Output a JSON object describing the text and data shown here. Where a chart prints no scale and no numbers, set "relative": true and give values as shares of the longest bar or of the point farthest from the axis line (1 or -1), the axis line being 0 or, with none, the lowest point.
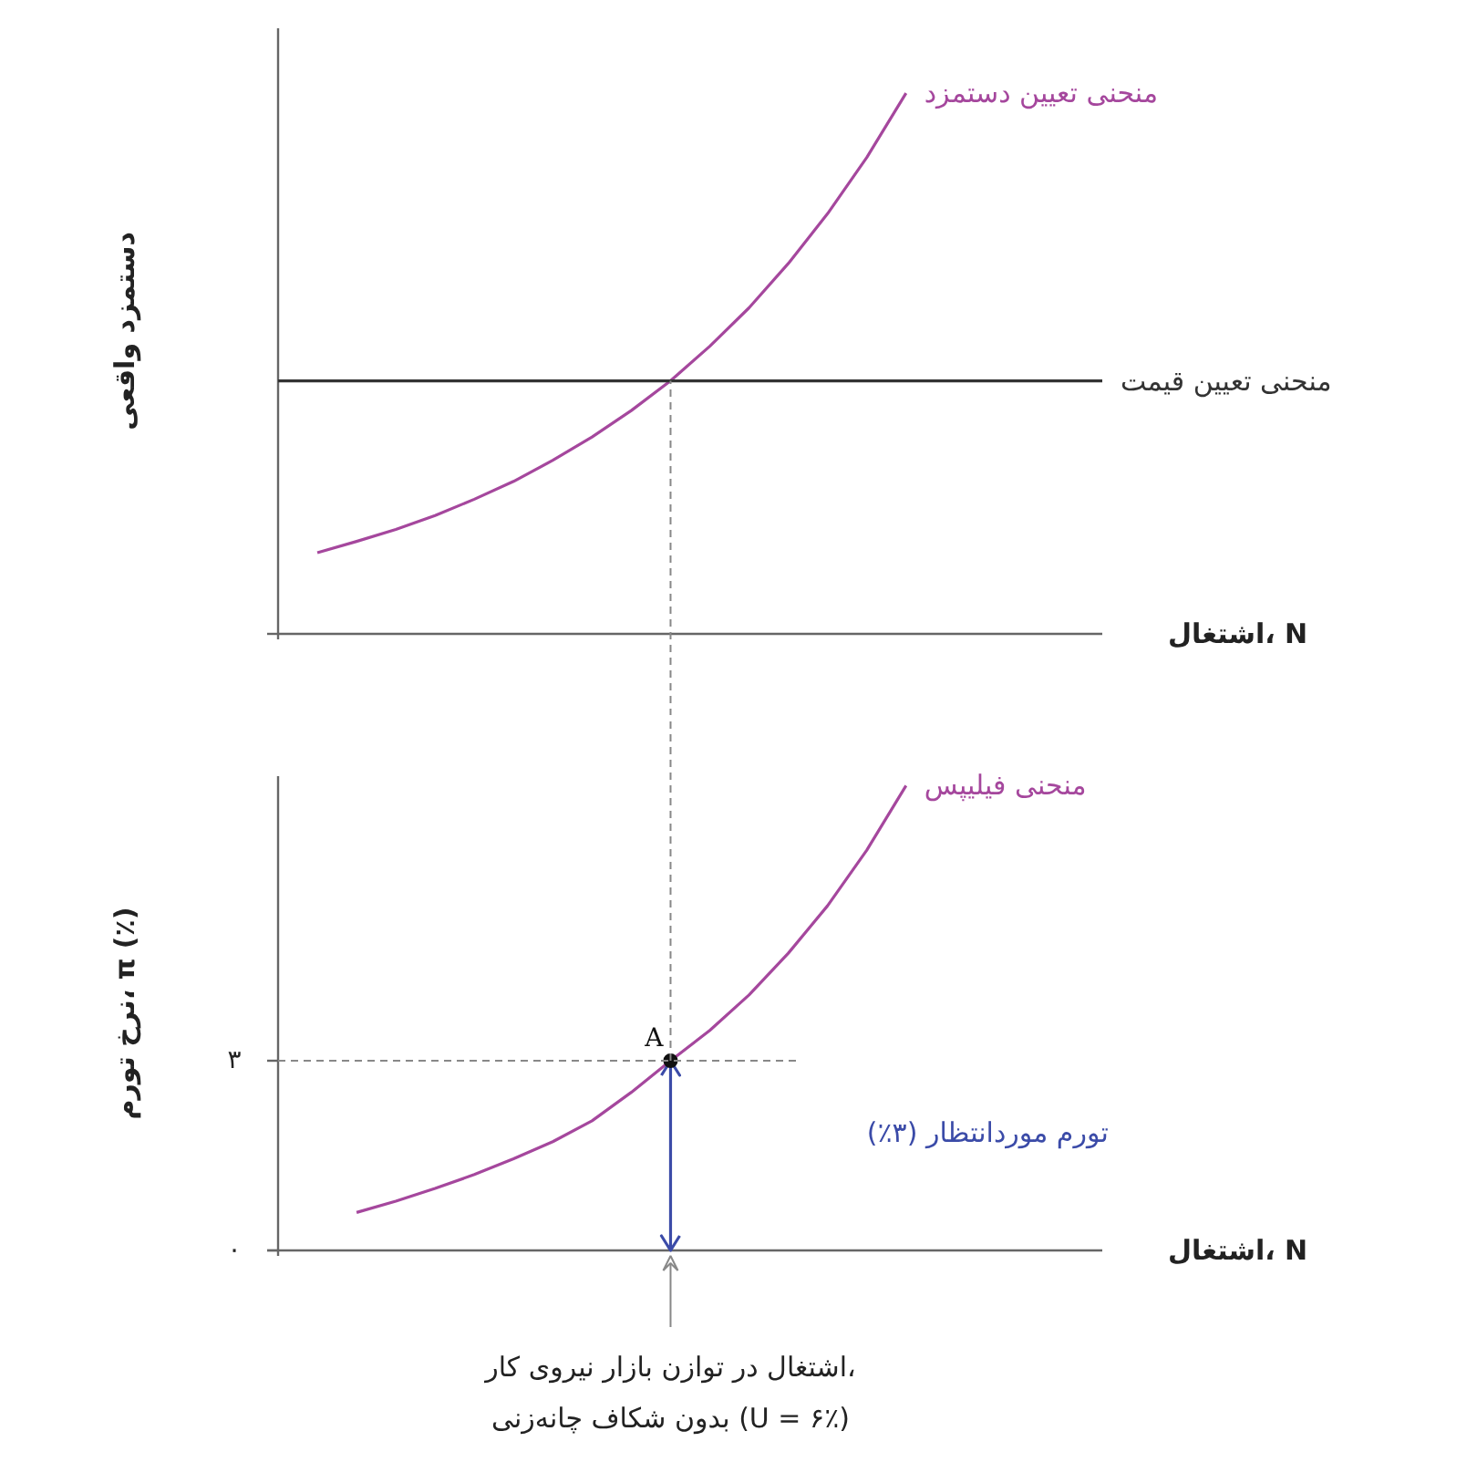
{
  "chart_data": [
    {
      "type": "line",
      "relative": true,
      "ylabel": "دستمزد واقعی",
      "xlabel": "اشتغال، N",
      "tick_labels": false,
      "grid": false,
      "legend": false,
      "categories": [
        null,
        null,
        null,
        null,
        null,
        null,
        null,
        null,
        null,
        null,
        null,
        null,
        null,
        null,
        null,
        null,
        null,
        null,
        null,
        null,
        null,
        null
      ],
      "series": [
        {
          "name": "منحنی تعیین دستمزد",
          "color": "#a5479d",
          "values": [
            null,
            0.15,
            0.171,
            0.193,
            0.219,
            0.249,
            0.282,
            0.321,
            0.364,
            0.413,
            0.468,
            0.532,
            0.603,
            0.685,
            0.777,
            0.881,
            1,
            null,
            null,
            null,
            null,
            null
          ]
        },
        {
          "name": "منحنی تعیین قیمت",
          "color": "#333333",
          "values": [
            0.468,
            0.468,
            0.468,
            0.468,
            0.468,
            0.468,
            0.468,
            0.468,
            0.468,
            0.468,
            0.468,
            0.468,
            0.468,
            0.468,
            0.468,
            0.468,
            0.468,
            0.468,
            0.468,
            0.468,
            0.468,
            0.468
          ]
        }
      ]
    },
    {
      "type": "line",
      "ylabel": "نرخ تورم، π (٪)",
      "xlabel": "اشتغال، N",
      "tick_labels": "y",
      "grid": false,
      "legend": false,
      "ylim": [
        0,
        7.5
      ],
      "yticks": [
        {
          "value": 0,
          "label": "۰"
        },
        {
          "value": 3,
          "label": "۳"
        }
      ],
      "categories": [
        null,
        null,
        null,
        null,
        null,
        null,
        null,
        null,
        null,
        null,
        null,
        null,
        null,
        null,
        null,
        null,
        null,
        null,
        null,
        null,
        null,
        null
      ],
      "series": [
        {
          "name": "منحنی فیلیپس",
          "color": "#a5479d",
          "values": [
            null,
            null,
            0.6,
            0.78,
            0.98,
            1.2,
            1.45,
            1.72,
            2.05,
            2.5,
            3.0,
            3.48,
            4.04,
            4.7,
            5.45,
            6.33,
            7.35,
            null,
            null,
            null,
            null,
            null
          ]
        },
        {
          "name": "A",
          "type": "scatter",
          "marker": "circle",
          "color": "#111111",
          "values": [
            null,
            null,
            null,
            null,
            null,
            null,
            null,
            null,
            null,
            null,
            3,
            null,
            null,
            null,
            null,
            null,
            null,
            null,
            null,
            null,
            null,
            null
          ],
          "errors": [
            null,
            null,
            null,
            null,
            null,
            null,
            null,
            null,
            null,
            null,
            [
              0,
              3
            ],
            null,
            null,
            null,
            null,
            null,
            null,
            null,
            null,
            null,
            null,
            null
          ]
        }
      ],
      "ref_lines": [
        {
          "axis": "y",
          "value": 3,
          "line_style": "dashed",
          "color": "#888888"
        }
      ],
      "annotations": [
        "تورم موردانتظار (۳٪)",
        "اشتغال در توازن بازار نیروی کار،\nبدون شکاف چانه‌زنی (U = ۶٪)"
      ]
    }
  ]
}
